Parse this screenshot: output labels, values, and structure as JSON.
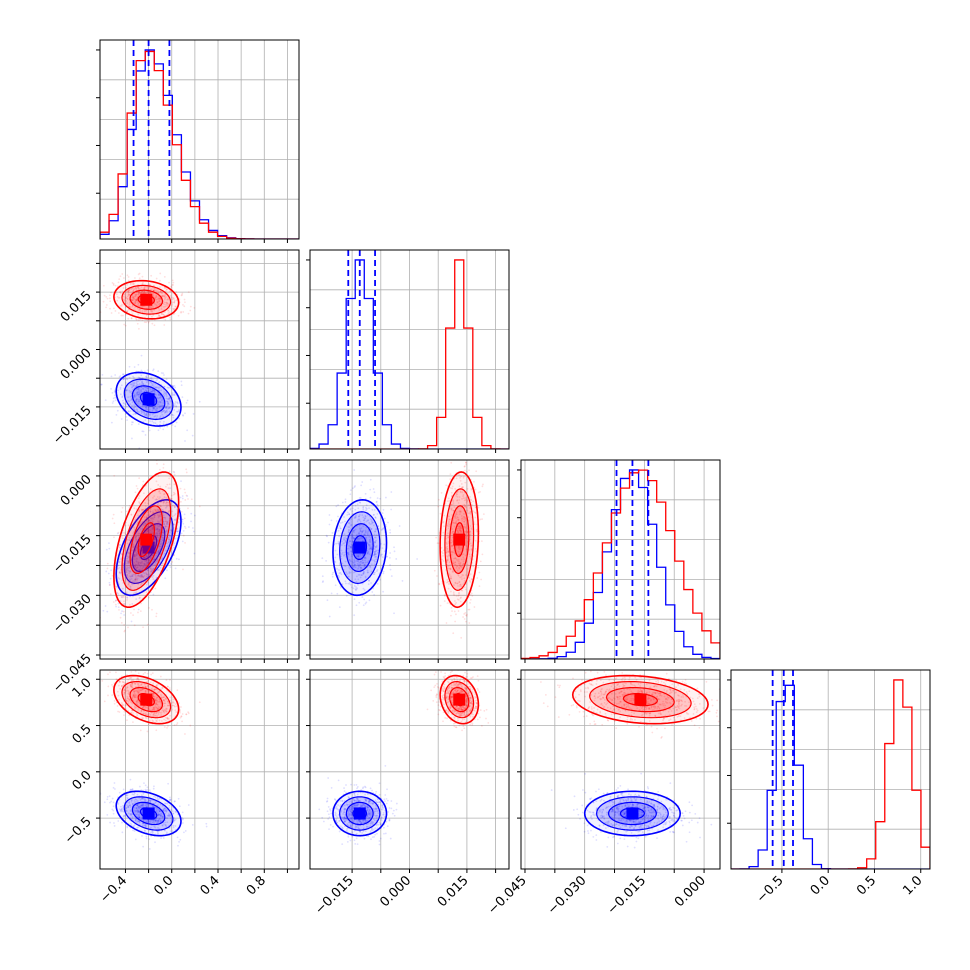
{
  "chart_data": {
    "type": "scatter",
    "title": "",
    "colors": {
      "blue": "#0000ff",
      "red": "#ff0000",
      "grid": "#b0b0b0"
    },
    "parameters": [
      {
        "range": [
          -0.62,
          1.1
        ],
        "ticks": [
          -0.4,
          -0.2,
          0.0,
          0.2,
          0.4,
          0.6,
          0.8,
          1.0
        ],
        "tick_labels": [
          "-0.4",
          "0.0",
          "0.4",
          "0.8"
        ],
        "tick_label_values": [
          -0.4,
          0.0,
          0.4,
          0.8
        ]
      },
      {
        "range": [
          -0.026,
          0.026
        ],
        "ticks": [
          -0.015,
          -0.0075,
          0.0,
          0.0075,
          0.015,
          0.0225
        ],
        "tick_labels": [
          "-0.015",
          "0.000",
          "0.015"
        ],
        "tick_label_values": [
          -0.015,
          0.0,
          0.015
        ]
      },
      {
        "range": [
          -0.046,
          0.004
        ],
        "ticks": [
          -0.045,
          -0.0375,
          -0.03,
          -0.0225,
          -0.015,
          -0.0075,
          0.0
        ],
        "tick_labels": [
          "-0.045",
          "-0.030",
          "-0.015",
          "0.000"
        ],
        "tick_label_values": [
          -0.045,
          -0.03,
          -0.015,
          0.0
        ]
      },
      {
        "range": [
          -1.05,
          1.1
        ],
        "ticks": [
          -0.5,
          0.0,
          0.5,
          1.0
        ],
        "tick_labels": [
          "-0.5",
          "0.0",
          "0.5",
          "1.0"
        ],
        "tick_label_values": [
          -0.5,
          0.0,
          0.5,
          1.0
        ]
      }
    ],
    "blue_quantiles": [
      [
        -0.33,
        -0.2,
        -0.02
      ],
      [
        -0.016,
        -0.013,
        -0.009
      ],
      [
        -0.022,
        -0.018,
        -0.014
      ],
      [
        -0.6,
        -0.48,
        -0.38
      ]
    ],
    "series": [
      {
        "color": "#0000ff",
        "mean": [
          -0.2,
          -0.013,
          -0.018,
          -0.45
        ],
        "sd": [
          0.14,
          0.0035,
          0.006,
          0.12
        ]
      },
      {
        "color": "#ff0000",
        "mean": [
          -0.22,
          0.013,
          -0.016,
          0.78
        ],
        "sd": [
          0.14,
          0.0025,
          0.0085,
          0.13
        ]
      }
    ],
    "contours": {
      "blue": {
        "1-0": {
          "mean": [
            -0.2,
            -0.013
          ],
          "sd": [
            0.14,
            0.0035
          ],
          "rho": -0.3
        },
        "2-0": {
          "mean": [
            -0.2,
            -0.018
          ],
          "sd": [
            0.14,
            0.006
          ],
          "rho": 0.55
        },
        "2-1": {
          "mean": [
            -0.013,
            -0.018
          ],
          "sd": [
            0.0035,
            0.006
          ],
          "rho": 0.1
        },
        "3-0": {
          "mean": [
            -0.2,
            -0.45
          ],
          "sd": [
            0.14,
            0.12
          ],
          "rho": -0.35
        },
        "3-1": {
          "mean": [
            -0.013,
            -0.45
          ],
          "sd": [
            0.0035,
            0.12
          ],
          "rho": 0.0
        },
        "3-2": {
          "mean": [
            -0.018,
            -0.45
          ],
          "sd": [
            0.006,
            0.12
          ],
          "rho": 0.0
        }
      },
      "red": {
        "1-0": {
          "mean": [
            -0.22,
            0.013
          ],
          "sd": [
            0.14,
            0.0025
          ],
          "rho": -0.15
        },
        "2-0": {
          "mean": [
            -0.22,
            -0.016
          ],
          "sd": [
            0.14,
            0.0085
          ],
          "rho": 0.55
        },
        "2-1": {
          "mean": [
            0.013,
            -0.016
          ],
          "sd": [
            0.0025,
            0.0085
          ],
          "rho": 0.1
        },
        "3-0": {
          "mean": [
            -0.22,
            0.78
          ],
          "sd": [
            0.14,
            0.13
          ],
          "rho": -0.4
        },
        "3-1": {
          "mean": [
            0.013,
            0.78
          ],
          "sd": [
            0.0025,
            0.13
          ],
          "rho": -0.2
        },
        "3-2": {
          "mean": [
            -0.016,
            0.78
          ],
          "sd": [
            0.0085,
            0.13
          ],
          "rho": -0.2
        }
      }
    },
    "grid": true,
    "legend": "none"
  }
}
